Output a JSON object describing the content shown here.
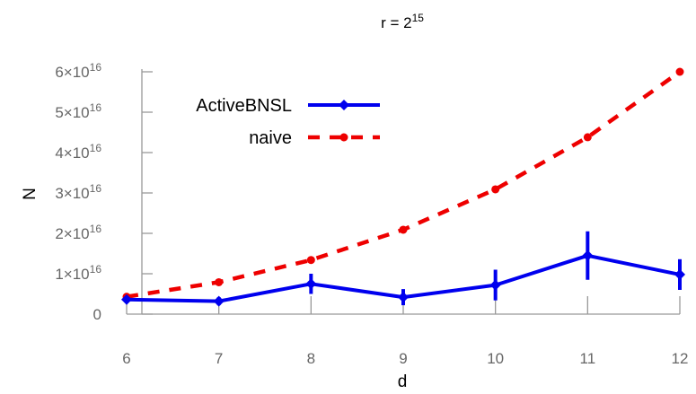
{
  "chart_data": {
    "type": "line",
    "title": "r = 2^15",
    "title_base": "r = 2",
    "title_exp": "15",
    "xlabel": "d",
    "ylabel": "N",
    "x": [
      6,
      7,
      8,
      9,
      10,
      11,
      12
    ],
    "xlim": [
      6,
      12
    ],
    "ylim": [
      0,
      6e+16
    ],
    "y_tick_values": [
      0,
      1e+16,
      2e+16,
      3e+16,
      4e+16,
      5e+16,
      6e+16
    ],
    "y_tick_labels": [
      {
        "base": "0",
        "exp": ""
      },
      {
        "base": "1×10",
        "exp": "16"
      },
      {
        "base": "2×10",
        "exp": "16"
      },
      {
        "base": "3×10",
        "exp": "16"
      },
      {
        "base": "4×10",
        "exp": "16"
      },
      {
        "base": "5×10",
        "exp": "16"
      },
      {
        "base": "6×10",
        "exp": "16"
      }
    ],
    "x_tick_labels": [
      "6",
      "7",
      "8",
      "9",
      "10",
      "11",
      "12"
    ],
    "grid": false,
    "legend_position": "top-left",
    "series": [
      {
        "name": "ActiveBNSL",
        "color": "#0000ee",
        "style": "solid",
        "marker": "diamond",
        "values": [
          3600000000000000.0,
          3200000000000000.0,
          7500000000000000.0,
          4200000000000000.0,
          7200000000000000.0,
          1.45e+16,
          9800000000000000.0
        ],
        "error": [
          800000000000000.0,
          1000000000000000.0,
          2500000000000000.0,
          2000000000000000.0,
          3800000000000000.0,
          6000000000000000.0,
          3800000000000000.0
        ]
      },
      {
        "name": "naive",
        "color": "#ee0000",
        "style": "dashed",
        "marker": "circle",
        "values": [
          4300000000000000.0,
          7900000000000000.0,
          1.34e+16,
          2.09e+16,
          3.09e+16,
          4.38e+16,
          6e+16
        ]
      }
    ]
  }
}
